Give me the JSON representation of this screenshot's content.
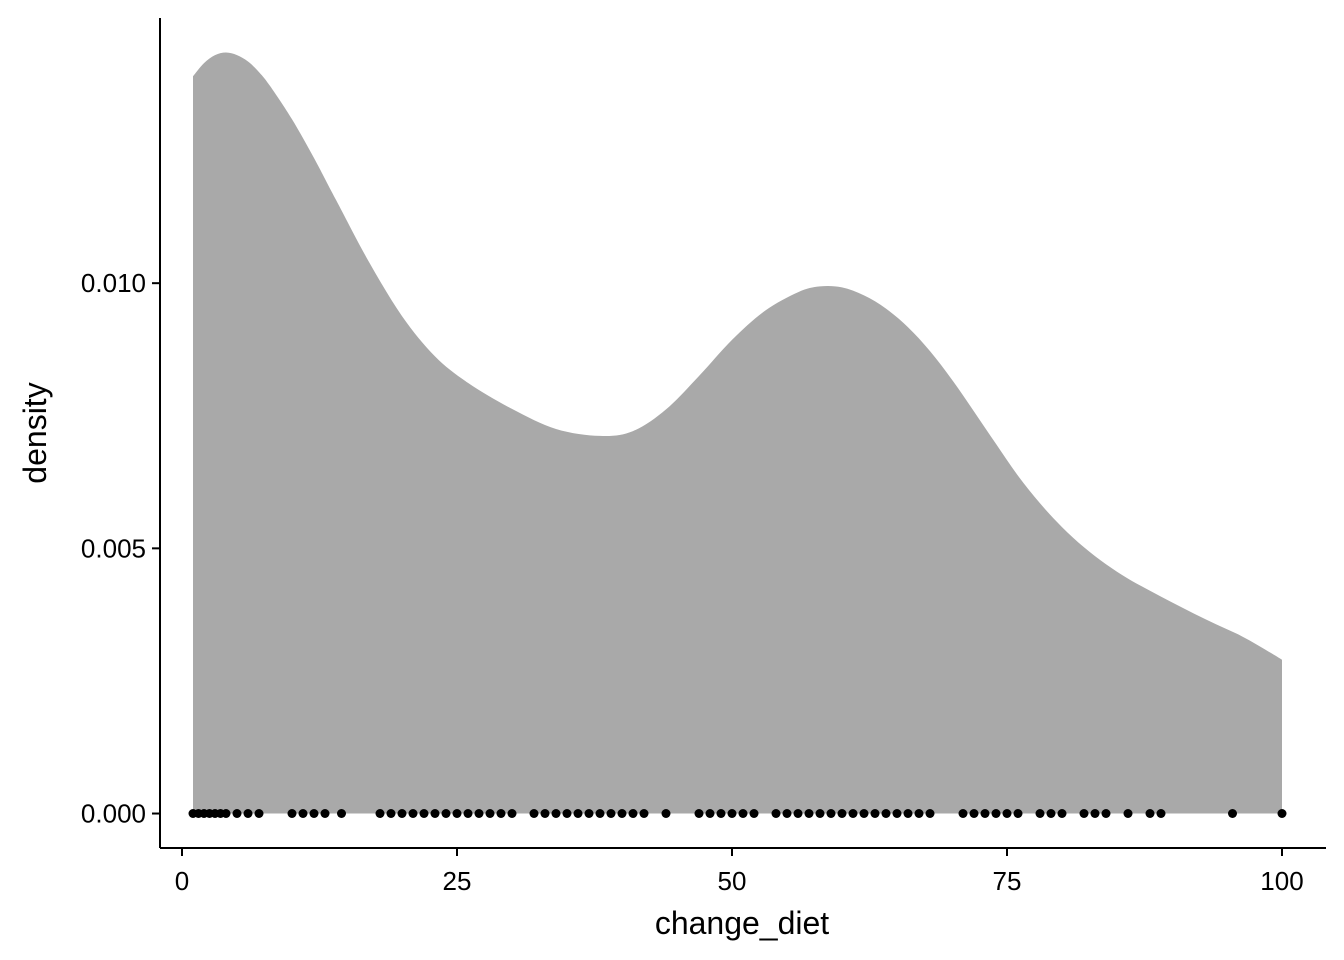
{
  "chart_data": {
    "type": "area",
    "title": "",
    "xlabel": "change_diet",
    "ylabel": "density",
    "xlim": [
      -2,
      104
    ],
    "ylim": [
      -0.00065,
      0.015
    ],
    "x_ticks": [
      0,
      25,
      50,
      75,
      100
    ],
    "x_tick_labels": [
      "0",
      "25",
      "50",
      "75",
      "100"
    ],
    "y_ticks": [
      0.0,
      0.005,
      0.01
    ],
    "y_tick_labels": [
      "0.000",
      "0.005",
      "0.010"
    ],
    "grid": false,
    "legend": "none",
    "colors": {
      "fill": "#a9a9a9",
      "points": "#000000",
      "axis": "#000000"
    },
    "series": [
      {
        "type": "density-area",
        "x": [
          1,
          2,
          3,
          4,
          5,
          6,
          7,
          8,
          10,
          12,
          14,
          17,
          20,
          23,
          26,
          30,
          34,
          38,
          41,
          44,
          47,
          50,
          53,
          56,
          58,
          60,
          62,
          64,
          66,
          68,
          70,
          72,
          74,
          76,
          78,
          80,
          82,
          84,
          86,
          88,
          90,
          92,
          94,
          96,
          98,
          100
        ],
        "y": [
          0.0139,
          0.01415,
          0.0143,
          0.01435,
          0.0143,
          0.01418,
          0.01398,
          0.01372,
          0.01309,
          0.01236,
          0.01157,
          0.0104,
          0.00938,
          0.00862,
          0.00812,
          0.00763,
          0.00725,
          0.00712,
          0.00721,
          0.00762,
          0.00825,
          0.00893,
          0.00948,
          0.00983,
          0.00994,
          0.00992,
          0.00977,
          0.00952,
          0.00917,
          0.00872,
          0.00818,
          0.00758,
          0.00697,
          0.00637,
          0.00585,
          0.0054,
          0.00502,
          0.0047,
          0.00443,
          0.0042,
          0.00398,
          0.00377,
          0.00357,
          0.00338,
          0.00315,
          0.0029
        ]
      },
      {
        "type": "rug-points",
        "x": [
          1,
          1.5,
          2,
          2.5,
          3,
          3.5,
          4,
          5,
          6,
          7,
          10,
          11,
          12,
          13,
          14.5,
          18,
          19,
          20,
          21,
          22,
          23,
          24,
          25,
          26,
          27,
          28,
          29,
          30,
          32,
          33,
          34,
          35,
          36,
          37,
          38,
          39,
          40,
          41,
          42,
          44,
          47,
          48,
          49,
          50,
          51,
          52,
          54,
          55,
          56,
          57,
          58,
          59,
          60,
          61,
          62,
          63,
          64,
          65,
          66,
          67,
          68,
          71,
          72,
          73,
          74,
          75,
          76,
          78,
          79,
          80,
          82,
          83,
          84,
          86,
          88,
          89,
          95.5,
          100
        ],
        "y": [
          0,
          0,
          0,
          0,
          0,
          0,
          0,
          0,
          0,
          0,
          0,
          0,
          0,
          0,
          0,
          0,
          0,
          0,
          0,
          0,
          0,
          0,
          0,
          0,
          0,
          0,
          0,
          0,
          0,
          0,
          0,
          0,
          0,
          0,
          0,
          0,
          0,
          0,
          0,
          0,
          0,
          0,
          0,
          0,
          0,
          0,
          0,
          0,
          0,
          0,
          0,
          0,
          0,
          0,
          0,
          0,
          0,
          0,
          0,
          0,
          0,
          0,
          0,
          0,
          0,
          0,
          0,
          0,
          0,
          0,
          0,
          0,
          0,
          0,
          0,
          0,
          0,
          0
        ]
      }
    ]
  }
}
